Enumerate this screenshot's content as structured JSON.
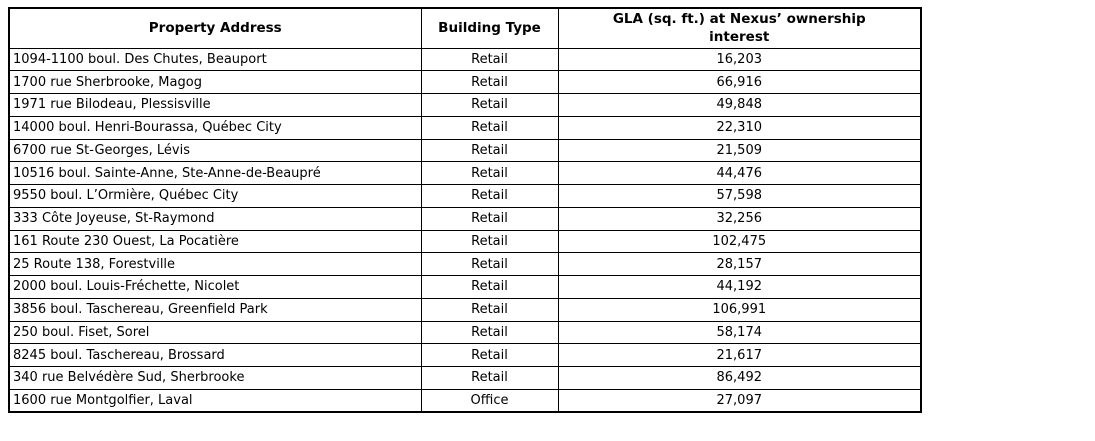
{
  "table": {
    "columns": [
      {
        "label": "Property Address"
      },
      {
        "label": "Building Type"
      },
      {
        "label": "GLA (sq. ft.) at Nexus’ ownership interest"
      }
    ],
    "rows": [
      {
        "address": "1094-1100 boul. Des Chutes, Beauport",
        "building_type": "Retail",
        "gla": "16,203"
      },
      {
        "address": "1700 rue Sherbrooke, Magog",
        "building_type": "Retail",
        "gla": "66,916"
      },
      {
        "address": "1971 rue Bilodeau, Plessisville",
        "building_type": "Retail",
        "gla": "49,848"
      },
      {
        "address": "14000 boul. Henri-Bourassa, Québec City",
        "building_type": "Retail",
        "gla": "22,310"
      },
      {
        "address": "6700 rue St-Georges, Lévis",
        "building_type": "Retail",
        "gla": "21,509"
      },
      {
        "address": "10516 boul. Sainte-Anne, Ste-Anne-de-Beaupré",
        "building_type": "Retail",
        "gla": "44,476"
      },
      {
        "address": "9550 boul. L’Ormière, Québec City",
        "building_type": "Retail",
        "gla": "57,598"
      },
      {
        "address": "333 Côte Joyeuse, St-Raymond",
        "building_type": "Retail",
        "gla": "32,256"
      },
      {
        "address": "161 Route 230 Ouest, La Pocatière",
        "building_type": "Retail",
        "gla": "102,475"
      },
      {
        "address": "25 Route 138, Forestville",
        "building_type": "Retail",
        "gla": "28,157"
      },
      {
        "address": "2000 boul. Louis-Fréchette, Nicolet",
        "building_type": "Retail",
        "gla": "44,192"
      },
      {
        "address": "3856 boul. Taschereau, Greenfield Park",
        "building_type": "Retail",
        "gla": "106,991"
      },
      {
        "address": "250 boul. Fiset, Sorel",
        "building_type": "Retail",
        "gla": "58,174"
      },
      {
        "address": "8245 boul. Taschereau, Brossard",
        "building_type": "Retail",
        "gla": "21,617"
      },
      {
        "address": "340 rue Belvédère Sud, Sherbrooke",
        "building_type": "Retail",
        "gla": "86,492"
      },
      {
        "address": "1600 rue Montgolfier, Laval",
        "building_type": "Office",
        "gla": "27,097"
      }
    ]
  }
}
